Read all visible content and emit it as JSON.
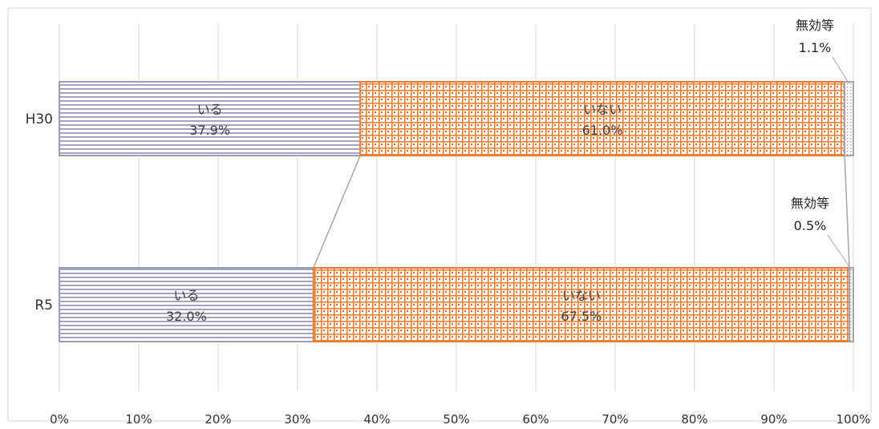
{
  "chart_data": {
    "type": "bar",
    "orientation": "horizontal",
    "stacked": true,
    "percent_stacked": true,
    "categories": [
      "H30",
      "R5"
    ],
    "series": [
      {
        "name": "いる",
        "values": [
          37.9,
          32.0
        ],
        "color": "#9b9bc0",
        "pattern": "horizontal-lines"
      },
      {
        "name": "いない",
        "values": [
          61.0,
          67.5
        ],
        "color": "#ed7d31",
        "pattern": "lattice"
      },
      {
        "name": "無効等",
        "values": [
          1.1,
          0.5
        ],
        "color": "#a6a6a6",
        "pattern": "dotted"
      }
    ],
    "data_labels": [
      {
        "category": "H30",
        "series": "いる",
        "name": "いる",
        "value": "37.9%"
      },
      {
        "category": "H30",
        "series": "いない",
        "name": "いない",
        "value": "61.0%"
      },
      {
        "category": "H30",
        "series": "無効等",
        "name": "無効等",
        "value": "1.1%"
      },
      {
        "category": "R5",
        "series": "いる",
        "name": "いる",
        "value": "32.0%"
      },
      {
        "category": "R5",
        "series": "いない",
        "name": "いない",
        "value": "67.5%"
      },
      {
        "category": "R5",
        "series": "無効等",
        "name": "無効等",
        "value": "0.5%"
      }
    ],
    "x_ticks": [
      "0%",
      "10%",
      "20%",
      "30%",
      "40%",
      "50%",
      "60%",
      "70%",
      "80%",
      "90%",
      "100%"
    ],
    "xlim": [
      0,
      100
    ],
    "title": "",
    "xlabel": "",
    "ylabel": "",
    "grid": "vertical",
    "series_lines": true,
    "legend": "none"
  }
}
